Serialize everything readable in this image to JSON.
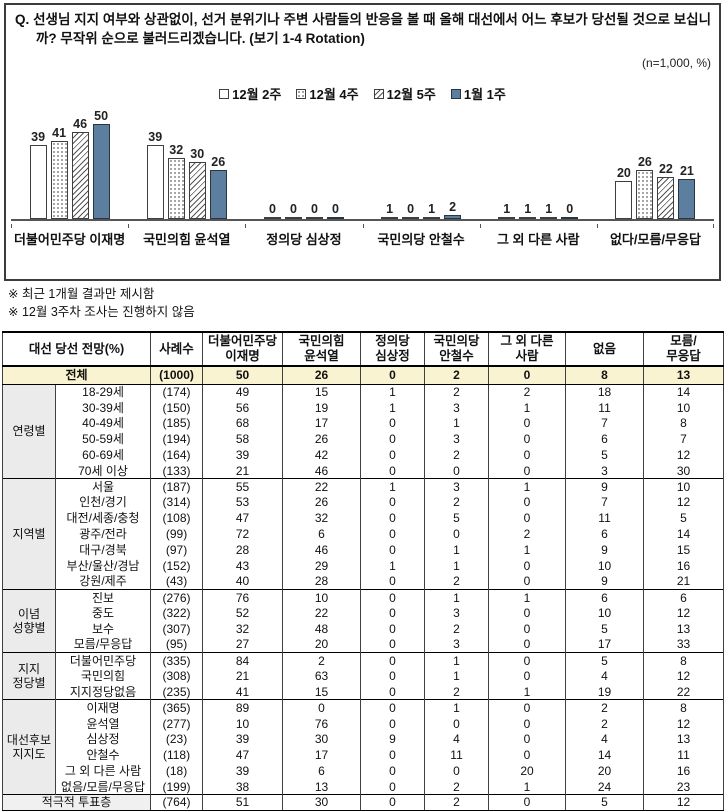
{
  "chart": {
    "title": "Q. 선생님 지지 여부와 상관없이, 선거 분위기나 주변 사람들의 반응을 볼 때 올해 대선에서 어느 후보가 당선될 것으로 보십니까? 무작위 순으로 불러드리겠습니다. (보기 1-4 Rotation)",
    "sample_note": "(n=1,000, %)"
  },
  "chart_data": {
    "type": "bar",
    "categories": [
      "더불어민주당 이재명",
      "국민의힘 윤석열",
      "정의당 심상정",
      "국민의당 안철수",
      "그 외 다른 사람",
      "없다/모름/무응답"
    ],
    "series": [
      {
        "name": "12월 2주",
        "style": "plain",
        "values": [
          39,
          39,
          0,
          1,
          1,
          20
        ]
      },
      {
        "name": "12월 4주",
        "style": "dots",
        "values": [
          41,
          32,
          0,
          0,
          1,
          26
        ]
      },
      {
        "name": "12월 5주",
        "style": "hatch",
        "values": [
          46,
          30,
          0,
          1,
          1,
          22
        ]
      },
      {
        "name": "1월 1주",
        "style": "solid",
        "values": [
          50,
          26,
          0,
          2,
          0,
          21
        ]
      }
    ],
    "title": "대선 당선 전망",
    "xlabel": "",
    "ylabel": "%",
    "ylim": [
      0,
      55
    ],
    "grid": false,
    "legend_position": "top"
  },
  "colors": {
    "solid_bar": "#5d7f9f",
    "bar_border": "#3f3f3f",
    "total_row_bg": "#faf3d1",
    "group_col_bg": "#ebebeb",
    "table_border": "#000000",
    "axis": "#555555"
  },
  "notes": [
    "※ 최근 1개월 결과만 제시함",
    "※ 12월 3주차 조사는 진행하지 않음"
  ],
  "table": {
    "corner_header": "대선 당선 전망(%)",
    "col_headers": [
      "사례수",
      "더불어민주당\n이재명",
      "국민의힘\n윤석열",
      "정의당\n심상정",
      "국민의당\n안철수",
      "그 외 다른\n사람",
      "없음",
      "모름/\n무응답"
    ],
    "total_row": {
      "label": "전체",
      "n": "(1000)",
      "values": [
        50,
        26,
        0,
        2,
        0,
        8,
        13
      ]
    },
    "groups": [
      {
        "label": "연령별",
        "rows": [
          {
            "label": "18-29세",
            "n": "(174)",
            "values": [
              49,
              15,
              1,
              2,
              2,
              18,
              14
            ]
          },
          {
            "label": "30-39세",
            "n": "(150)",
            "values": [
              56,
              19,
              1,
              3,
              1,
              11,
              10
            ]
          },
          {
            "label": "40-49세",
            "n": "(185)",
            "values": [
              68,
              17,
              0,
              1,
              0,
              7,
              8
            ]
          },
          {
            "label": "50-59세",
            "n": "(194)",
            "values": [
              58,
              26,
              0,
              3,
              0,
              6,
              7
            ]
          },
          {
            "label": "60-69세",
            "n": "(164)",
            "values": [
              39,
              42,
              0,
              2,
              0,
              5,
              12
            ]
          },
          {
            "label": "70세 이상",
            "n": "(133)",
            "values": [
              21,
              46,
              0,
              0,
              0,
              3,
              30
            ]
          }
        ]
      },
      {
        "label": "지역별",
        "rows": [
          {
            "label": "서울",
            "n": "(187)",
            "values": [
              55,
              22,
              1,
              3,
              1,
              9,
              10
            ]
          },
          {
            "label": "인천/경기",
            "n": "(314)",
            "values": [
              53,
              26,
              0,
              2,
              0,
              7,
              12
            ]
          },
          {
            "label": "대전/세종/충청",
            "n": "(108)",
            "values": [
              47,
              32,
              0,
              5,
              0,
              11,
              5
            ]
          },
          {
            "label": "광주/전라",
            "n": "(99)",
            "values": [
              72,
              6,
              0,
              0,
              2,
              6,
              14
            ]
          },
          {
            "label": "대구/경북",
            "n": "(97)",
            "values": [
              28,
              46,
              0,
              1,
              1,
              9,
              15
            ]
          },
          {
            "label": "부산/울산/경남",
            "n": "(152)",
            "values": [
              43,
              29,
              1,
              1,
              0,
              10,
              16
            ]
          },
          {
            "label": "강원/제주",
            "n": "(43)",
            "values": [
              40,
              28,
              0,
              2,
              0,
              9,
              21
            ]
          }
        ]
      },
      {
        "label": "이념\n성향별",
        "rows": [
          {
            "label": "진보",
            "n": "(276)",
            "values": [
              76,
              10,
              0,
              1,
              1,
              6,
              6
            ]
          },
          {
            "label": "중도",
            "n": "(322)",
            "values": [
              52,
              22,
              0,
              3,
              0,
              10,
              12
            ]
          },
          {
            "label": "보수",
            "n": "(307)",
            "values": [
              32,
              48,
              0,
              2,
              0,
              5,
              13
            ]
          },
          {
            "label": "모름/무응답",
            "n": "(95)",
            "values": [
              27,
              20,
              0,
              3,
              0,
              17,
              33
            ]
          }
        ]
      },
      {
        "label": "지지\n정당별",
        "rows": [
          {
            "label": "더불어민주당",
            "n": "(335)",
            "values": [
              84,
              2,
              0,
              1,
              0,
              5,
              8
            ]
          },
          {
            "label": "국민의힘",
            "n": "(308)",
            "values": [
              21,
              63,
              0,
              1,
              0,
              4,
              12
            ]
          },
          {
            "label": "지지정당없음",
            "n": "(235)",
            "values": [
              41,
              15,
              0,
              2,
              1,
              19,
              22
            ]
          }
        ]
      },
      {
        "label": "대선후보\n지지도",
        "rows": [
          {
            "label": "이재명",
            "n": "(365)",
            "values": [
              89,
              0,
              0,
              1,
              0,
              2,
              8
            ]
          },
          {
            "label": "윤석열",
            "n": "(277)",
            "values": [
              10,
              76,
              0,
              0,
              0,
              2,
              12
            ]
          },
          {
            "label": "심상정",
            "n": "(23)",
            "values": [
              39,
              30,
              9,
              4,
              0,
              4,
              13
            ]
          },
          {
            "label": "안철수",
            "n": "(118)",
            "values": [
              47,
              17,
              0,
              11,
              0,
              14,
              11
            ]
          },
          {
            "label": "그 외 다른 사람",
            "n": "(18)",
            "values": [
              39,
              6,
              0,
              0,
              20,
              20,
              16
            ]
          },
          {
            "label": "없음/모름/무응답",
            "n": "(199)",
            "values": [
              38,
              13,
              0,
              2,
              1,
              24,
              23
            ]
          }
        ]
      }
    ],
    "footer_row": {
      "label": "적극적 투표층",
      "n": "(764)",
      "values": [
        51,
        30,
        0,
        2,
        0,
        5,
        12
      ]
    }
  }
}
